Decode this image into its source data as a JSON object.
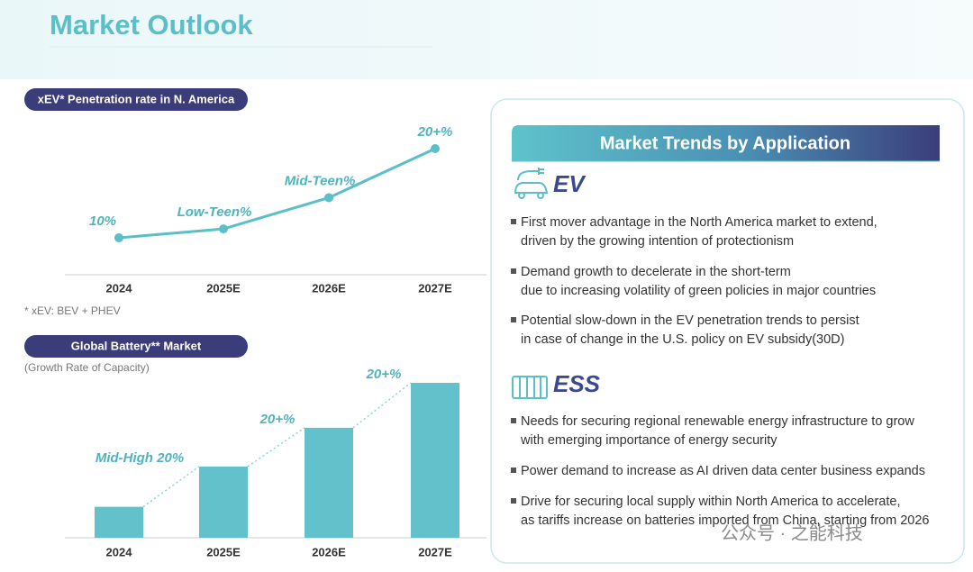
{
  "header": {
    "title": "Market Outlook"
  },
  "chart_data": [
    {
      "type": "line",
      "label": "xEV* Penetration rate in N. America",
      "footnote": "* xEV: BEV + PHEV",
      "categories": [
        "2024",
        "2025E",
        "2026E",
        "2027E"
      ],
      "values": [
        10,
        11,
        14.5,
        20
      ],
      "value_labels": [
        "10%",
        "Low-Teen%",
        "Mid-Teen%",
        "20+%"
      ],
      "color": "#5bbfc8"
    },
    {
      "type": "bar",
      "label": "Global Battery** Market",
      "subtitle": "(Growth Rate of Capacity)",
      "categories": [
        "2024",
        "2025E",
        "2026E",
        "2027E"
      ],
      "values": [
        20,
        46,
        71,
        100
      ],
      "growth_labels": [
        "Mid-High 20%",
        "20+%",
        "20+%"
      ],
      "color": "#62c1cb"
    }
  ],
  "trends": {
    "title": "Market Trends by Application",
    "sections": [
      {
        "name": "EV",
        "bullets": [
          [
            "First mover advantage in the North America market to extend,",
            "driven by the growing intention of protectionism"
          ],
          [
            "Demand growth to decelerate in the short-term",
            "due to increasing volatility of green policies in major countries"
          ],
          [
            "Potential slow-down in the EV penetration trends to persist",
            "in case of change in the U.S. policy on EV subsidy(30D)"
          ]
        ]
      },
      {
        "name": "ESS",
        "bullets": [
          [
            "Needs for securing regional renewable energy infrastructure to grow",
            "with emerging importance of energy security"
          ],
          [
            "Power demand to increase as AI driven data center business expands"
          ],
          [
            "Drive for securing local supply within North America to accelerate,",
            "as tariffs increase on batteries imported from China, starting from 2026"
          ]
        ]
      }
    ]
  },
  "watermark": "公众号 · 之能科技"
}
